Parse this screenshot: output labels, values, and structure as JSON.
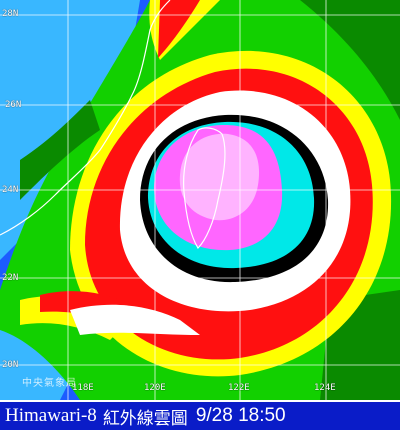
{
  "map": {
    "latitude_labels": [
      "26N",
      "24N",
      "22N",
      "20N"
    ],
    "longitude_labels": [
      "118E",
      "120E",
      "122E",
      "124E"
    ],
    "top_label": "28N",
    "watermark": "中央氣象局",
    "colors": {
      "ocean_clear": "#1c5cff",
      "low_cloud_blue": "#39b7ff",
      "green": "#12d000",
      "dark_green": "#0a8a00",
      "yellow": "#ffff00",
      "red": "#ff1010",
      "white": "#ffffff",
      "black": "#000000",
      "cyan": "#00e8e8",
      "magenta": "#ff66ff",
      "eye_pink": "#ffb3ff",
      "coast": "#ffffff",
      "grid": "#ffffff"
    }
  },
  "caption": {
    "satellite": "Himawari-8",
    "product": "紅外線雲圖",
    "datetime": "9/28  18:50",
    "background": "#0a1cc8"
  }
}
